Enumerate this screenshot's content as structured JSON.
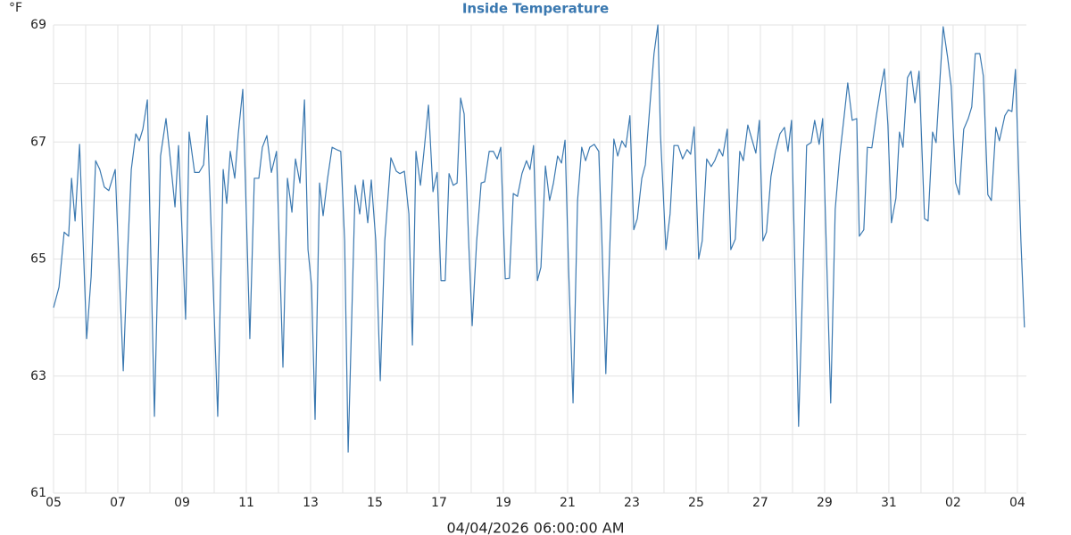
{
  "chart_data": {
    "type": "line",
    "title": "Inside Temperature",
    "x_label": "04/04/2026 06:00:00 AM",
    "y_label": "°F",
    "color": "#3a78b0",
    "grid": true,
    "minor_grid": true,
    "xlim": [
      0,
      30.28
    ],
    "ylim": [
      61,
      69
    ],
    "yticks": [
      61,
      63,
      65,
      67,
      69
    ],
    "xticks": [
      {
        "value": 0,
        "label": "05"
      },
      {
        "value": 2,
        "label": "07"
      },
      {
        "value": 4,
        "label": "09"
      },
      {
        "value": 6,
        "label": "11"
      },
      {
        "value": 8,
        "label": "13"
      },
      {
        "value": 10,
        "label": "15"
      },
      {
        "value": 12,
        "label": "17"
      },
      {
        "value": 14,
        "label": "19"
      },
      {
        "value": 16,
        "label": "21"
      },
      {
        "value": 18,
        "label": "23"
      },
      {
        "value": 20,
        "label": "25"
      },
      {
        "value": 22,
        "label": "27"
      },
      {
        "value": 24,
        "label": "29"
      },
      {
        "value": 26,
        "label": "31"
      },
      {
        "value": 28,
        "label": "02"
      },
      {
        "value": 30,
        "label": "04"
      }
    ],
    "x": [
      0,
      0.17,
      0.33,
      0.47,
      0.56,
      0.67,
      0.81,
      1.03,
      1.17,
      1.31,
      1.44,
      1.58,
      1.72,
      1.92,
      2.03,
      2.17,
      2.31,
      2.42,
      2.56,
      2.67,
      2.78,
      2.92,
      3.14,
      3.33,
      3.5,
      3.61,
      3.78,
      3.89,
      4.11,
      4.22,
      4.39,
      4.53,
      4.67,
      4.78,
      4.94,
      5.11,
      5.28,
      5.39,
      5.5,
      5.64,
      5.75,
      5.89,
      6.11,
      6.25,
      6.39,
      6.5,
      6.64,
      6.78,
      6.94,
      7.14,
      7.28,
      7.42,
      7.53,
      7.67,
      7.81,
      7.92,
      8.03,
      8.14,
      8.28,
      8.39,
      8.53,
      8.67,
      8.81,
      8.94,
      9.06,
      9.17,
      9.39,
      9.53,
      9.64,
      9.78,
      9.89,
      10.03,
      10.17,
      10.31,
      10.5,
      10.67,
      10.78,
      10.92,
      11.06,
      11.17,
      11.28,
      11.42,
      11.53,
      11.67,
      11.81,
      11.94,
      12.06,
      12.19,
      12.31,
      12.44,
      12.56,
      12.67,
      12.78,
      12.92,
      13.03,
      13.17,
      13.31,
      13.42,
      13.56,
      13.69,
      13.81,
      13.92,
      14.06,
      14.19,
      14.31,
      14.44,
      14.58,
      14.72,
      14.83,
      14.94,
      15.06,
      15.17,
      15.31,
      15.44,
      15.56,
      15.69,
      15.81,
      15.92,
      16.03,
      16.17,
      16.31,
      16.44,
      16.56,
      16.69,
      16.83,
      16.97,
      17.06,
      17.19,
      17.31,
      17.44,
      17.56,
      17.69,
      17.81,
      17.94,
      18.06,
      18.17,
      18.31,
      18.42,
      18.58,
      18.69,
      18.81,
      18.89,
      19.06,
      19.19,
      19.31,
      19.44,
      19.58,
      19.72,
      19.83,
      19.94,
      20.08,
      20.19,
      20.33,
      20.47,
      20.58,
      20.72,
      20.83,
      20.97,
      21.08,
      21.22,
      21.36,
      21.47,
      21.61,
      21.75,
      21.86,
      21.97,
      22.08,
      22.19,
      22.33,
      22.47,
      22.61,
      22.75,
      22.86,
      22.97,
      23.19,
      23.44,
      23.58,
      23.69,
      23.83,
      23.94,
      24.19,
      24.33,
      24.47,
      24.61,
      24.72,
      24.86,
      25,
      25.08,
      25.22,
      25.33,
      25.47,
      25.61,
      25.75,
      25.86,
      25.97,
      26.08,
      26.22,
      26.33,
      26.44,
      26.58,
      26.69,
      26.81,
      26.94,
      27.11,
      27.22,
      27.36,
      27.47,
      27.58,
      27.69,
      27.83,
      27.94,
      28.08,
      28.19,
      28.33,
      28.47,
      28.58,
      28.69,
      28.83,
      28.94,
      29.08,
      29.19,
      29.33,
      29.44,
      29.61,
      29.72,
      29.83,
      29.94,
      30.11,
      30.22
    ],
    "values": [
      64.17,
      64.52,
      65.46,
      65.39,
      66.38,
      65.65,
      66.96,
      63.64,
      64.7,
      66.68,
      66.53,
      66.23,
      66.17,
      66.53,
      65,
      63.09,
      65.16,
      66.53,
      67.14,
      67.02,
      67.22,
      67.72,
      62.31,
      66.76,
      67.4,
      66.84,
      65.89,
      66.94,
      63.97,
      67.17,
      66.48,
      66.48,
      66.61,
      67.45,
      65,
      62.31,
      66.53,
      65.95,
      66.84,
      66.38,
      67.14,
      67.9,
      63.64,
      66.38,
      66.38,
      66.91,
      67.11,
      66.48,
      66.84,
      63.15,
      66.38,
      65.8,
      66.71,
      66.3,
      67.72,
      65.16,
      64.55,
      62.26,
      66.3,
      65.74,
      66.38,
      66.91,
      66.87,
      66.84,
      65.31,
      61.7,
      66.26,
      65.77,
      66.35,
      65.62,
      66.35,
      65.31,
      62.92,
      65.31,
      66.73,
      66.5,
      66.46,
      66.5,
      65.77,
      63.53,
      66.84,
      66.26,
      66.84,
      67.63,
      66.15,
      66.48,
      64.63,
      64.63,
      66.46,
      66.26,
      66.3,
      67.75,
      67.48,
      65.31,
      63.86,
      65.31,
      66.3,
      66.32,
      66.84,
      66.84,
      66.71,
      66.91,
      64.66,
      64.67,
      66.12,
      66.07,
      66.46,
      66.68,
      66.53,
      66.94,
      64.63,
      64.86,
      66.59,
      66,
      66.3,
      66.76,
      66.64,
      67.03,
      64.86,
      62.54,
      66,
      66.91,
      66.68,
      66.91,
      66.96,
      66.84,
      65.46,
      63.04,
      65.16,
      67.05,
      66.76,
      67.02,
      66.91,
      67.45,
      65.5,
      65.69,
      66.38,
      66.61,
      67.75,
      68.51,
      69,
      67.14,
      65.16,
      65.77,
      66.94,
      66.94,
      66.71,
      66.87,
      66.79,
      67.26,
      65,
      65.31,
      66.71,
      66.58,
      66.68,
      66.88,
      66.76,
      67.22,
      65.16,
      65.34,
      66.84,
      66.68,
      67.29,
      67.02,
      66.81,
      67.37,
      65.31,
      65.46,
      66.41,
      66.84,
      67.14,
      67.25,
      66.84,
      67.37,
      62.14,
      66.94,
      66.99,
      67.37,
      66.96,
      67.4,
      62.54,
      65.85,
      66.76,
      67.45,
      68.01,
      67.37,
      67.4,
      65.39,
      65.5,
      66.91,
      66.9,
      67.45,
      67.93,
      68.25,
      67.29,
      65.62,
      66.04,
      67.17,
      66.91,
      68.1,
      68.21,
      67.67,
      68.21,
      65.69,
      65.65,
      67.17,
      66.99,
      67.98,
      68.97,
      68.44,
      67.95,
      66.3,
      66.1,
      67.22,
      67.4,
      67.6,
      68.51,
      68.51,
      68.13,
      66.1,
      66,
      67.25,
      67.02,
      67.45,
      67.55,
      67.52,
      68.24,
      65.31,
      63.83
    ]
  }
}
